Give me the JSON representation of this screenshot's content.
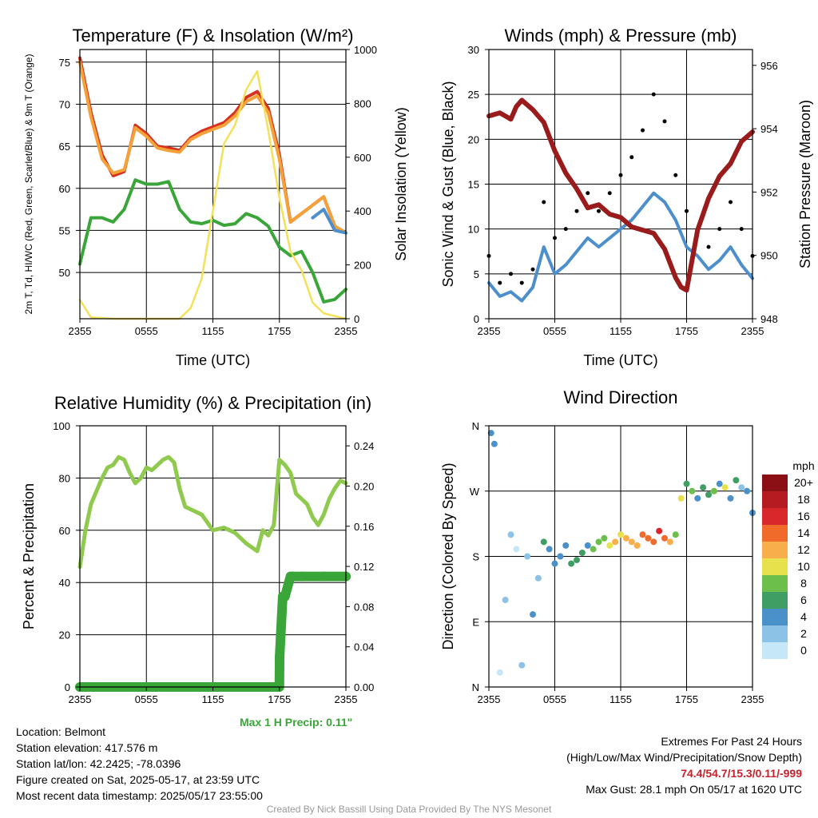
{
  "chart_data": [
    {
      "type": "line",
      "title": "Temperature (F) & Insolation (W/m²)",
      "xlabel": "Time (UTC)",
      "ylabel": "2m T, Td, HI/WC (Red, Green, Scarlet/Blue) & 9m T (Orange)",
      "y2label": "Solar Insolation (Yellow)",
      "x_ticks": [
        "2355",
        "0555",
        "1155",
        "1755",
        "2355"
      ],
      "ylim": [
        44.5,
        76.5
      ],
      "y_ticks": [
        50,
        55,
        60,
        65,
        70,
        75
      ],
      "y2lim": [
        0,
        1000
      ],
      "y2_ticks": [
        0,
        200,
        400,
        600,
        800,
        1000
      ],
      "grid": true,
      "series": [
        {
          "name": "2m T",
          "color": "#d7301f",
          "axis": "left",
          "x": [
            0,
            1,
            2,
            3,
            4,
            5,
            6,
            7,
            8,
            9,
            10,
            11,
            12,
            13,
            14,
            15,
            16,
            17,
            18,
            19,
            20,
            21,
            22,
            23,
            24
          ],
          "y": [
            75.5,
            69,
            64,
            61.5,
            62,
            67.5,
            66.5,
            65,
            64.8,
            64.5,
            66,
            66.8,
            67.3,
            67.8,
            69,
            70.8,
            71.5,
            69.5,
            64,
            56,
            57,
            58,
            59,
            55.5,
            54.7
          ]
        },
        {
          "name": "9m T",
          "color": "#f4a13a",
          "axis": "left",
          "x": [
            0,
            1,
            2,
            3,
            4,
            5,
            6,
            7,
            8,
            9,
            10,
            11,
            12,
            13,
            14,
            15,
            16,
            17,
            18,
            19,
            20,
            21,
            22,
            23,
            24
          ],
          "y": [
            75,
            68.5,
            63.5,
            61.8,
            62.2,
            67.2,
            66.2,
            64.8,
            64.5,
            64.3,
            65.8,
            66.5,
            67,
            67.5,
            68.6,
            70.3,
            71,
            69,
            63.5,
            56,
            57,
            58,
            59,
            55.5,
            54.7
          ]
        },
        {
          "name": "Td",
          "color": "#3aa63a",
          "axis": "left",
          "x": [
            0,
            1,
            2,
            3,
            4,
            5,
            6,
            7,
            8,
            9,
            10,
            11,
            12,
            13,
            14,
            15,
            16,
            17,
            18,
            19,
            20,
            21,
            22,
            23,
            24
          ],
          "y": [
            51,
            56.5,
            56.5,
            56,
            57.5,
            61,
            60.5,
            60.5,
            60.8,
            57.5,
            56,
            55.8,
            56.2,
            55.6,
            55.8,
            57,
            56.5,
            55.5,
            53,
            52,
            52.5,
            50,
            46.5,
            46.8,
            48
          ]
        },
        {
          "name": "HI/WC",
          "color": "#4d8fcc",
          "axis": "left",
          "x": [
            21,
            22,
            23,
            24
          ],
          "y": [
            56.5,
            57.5,
            55,
            54.7
          ]
        },
        {
          "name": "Solar Insolation",
          "color": "#f5e05a",
          "axis": "right",
          "x": [
            0,
            1,
            3,
            5,
            7,
            9,
            10,
            11,
            12,
            13,
            14,
            15,
            16,
            17,
            18,
            19,
            20,
            21,
            22,
            23,
            24
          ],
          "y": [
            70,
            5,
            0,
            0,
            0,
            0,
            40,
            150,
            400,
            650,
            720,
            850,
            920,
            700,
            450,
            250,
            180,
            60,
            20,
            10,
            0
          ]
        }
      ]
    },
    {
      "type": "line",
      "title": "Winds (mph) & Pressure (mb)",
      "xlabel": "Time (UTC)",
      "ylabel": "Sonic Wind & Gust (Blue, Black)",
      "y2label": "Station Pressure (Maroon)",
      "x_ticks": [
        "2355",
        "0555",
        "1155",
        "1755",
        "2355"
      ],
      "ylim": [
        0,
        30
      ],
      "y_ticks": [
        0,
        5,
        10,
        15,
        20,
        25,
        30
      ],
      "y2lim": [
        948,
        956.5
      ],
      "y2_ticks": [
        948,
        950,
        952,
        954,
        956
      ],
      "grid": true,
      "series": [
        {
          "name": "Sonic Wind",
          "color": "#4d8fcc",
          "axis": "left",
          "x": [
            0,
            1,
            2,
            3,
            4,
            5,
            6,
            7,
            8,
            9,
            10,
            11,
            12,
            13,
            14,
            15,
            16,
            17,
            18,
            19,
            20,
            21,
            22,
            23,
            24
          ],
          "y": [
            4,
            2.5,
            3,
            2,
            3.5,
            8,
            5,
            6,
            7.5,
            9,
            8,
            9,
            10,
            11,
            12.5,
            14,
            13,
            11,
            8,
            7,
            5.5,
            6.5,
            8,
            6,
            4.5
          ]
        },
        {
          "name": "Gust",
          "color": "#000000",
          "axis": "left",
          "x": [
            0,
            1,
            2,
            3,
            4,
            5,
            6,
            7,
            8,
            9,
            10,
            11,
            12,
            13,
            14,
            15,
            16,
            17,
            18,
            19,
            20,
            21,
            22,
            23,
            24
          ],
          "y": [
            7,
            4,
            5,
            4,
            5.5,
            13,
            9,
            10,
            12,
            14,
            12,
            14,
            16,
            18,
            21,
            25,
            22,
            16,
            12,
            10,
            8,
            10,
            13,
            10,
            7
          ]
        },
        {
          "name": "Station Pressure",
          "color": "#991b1b",
          "axis": "right",
          "x": [
            0,
            1,
            2,
            2.5,
            3,
            4,
            5,
            6,
            7,
            8,
            9,
            10,
            11,
            12,
            13,
            14,
            15,
            16,
            17,
            17.5,
            18,
            19,
            20,
            21,
            22,
            23,
            24
          ],
          "y": [
            954.4,
            954.5,
            954.3,
            954.7,
            954.9,
            954.6,
            954.2,
            953.3,
            952.6,
            952.1,
            951.5,
            951.6,
            951.3,
            951.2,
            950.9,
            950.8,
            950.7,
            950.2,
            949.3,
            949.0,
            948.9,
            950.8,
            951.8,
            952.5,
            952.9,
            953.6,
            953.9
          ]
        }
      ]
    },
    {
      "type": "line",
      "title": "Relative Humidity (%) & Precipitation (in)",
      "xlabel": "",
      "ylabel": "Percent & Precipitation",
      "x_ticks": [
        "2355",
        "0555",
        "1155",
        "1755",
        "2355"
      ],
      "ylim": [
        0,
        100
      ],
      "y_ticks": [
        0,
        20,
        40,
        60,
        80,
        100
      ],
      "y2lim": [
        0,
        0.26
      ],
      "y2_ticks": [
        "0.00",
        "0.04",
        "0.08",
        "0.12",
        "0.16",
        "0.20",
        "0.24"
      ],
      "grid": true,
      "series": [
        {
          "name": "Relative Humidity",
          "color": "#8fc94d",
          "axis": "left",
          "x": [
            0,
            0.5,
            1,
            1.5,
            2,
            2.5,
            3,
            3.5,
            4,
            4.5,
            5,
            5.5,
            6,
            6.5,
            7,
            7.5,
            8,
            8.5,
            9,
            9.5,
            10,
            11,
            12,
            13,
            14,
            15,
            16,
            16.5,
            17,
            17.5,
            18,
            18.5,
            19,
            19.5,
            20,
            20.5,
            21,
            21.5,
            22,
            22.5,
            23,
            23.5,
            24
          ],
          "y": [
            46,
            60,
            70,
            75,
            80,
            84,
            85,
            88,
            87,
            82,
            78,
            80,
            84,
            83,
            85,
            87,
            88,
            86,
            76,
            69,
            68,
            66,
            60,
            61,
            59,
            55,
            52,
            60,
            58,
            62,
            87,
            85,
            82,
            74,
            72,
            70,
            65,
            62,
            66,
            72,
            76,
            79,
            78
          ]
        },
        {
          "name": "Precipitation",
          "color": "#3aa63a",
          "axis": "right",
          "x": [
            0,
            18,
            18.02,
            18.3,
            18.5,
            19,
            19.2,
            20,
            22,
            24
          ],
          "y": [
            0,
            0,
            0.03,
            0.09,
            0.09,
            0.11,
            0.11,
            0.11,
            0.11,
            0.11
          ]
        }
      ],
      "annotation": "Max 1 H Precip: 0.11\""
    },
    {
      "type": "scatter",
      "title": "Wind Direction",
      "xlabel": "",
      "ylabel": "Direction (Colored By Speed)",
      "x_ticks": [
        "2355",
        "0555",
        "1155",
        "1755",
        "2355"
      ],
      "y_ticks": [
        "N",
        "E",
        "S",
        "W",
        "N"
      ],
      "ylim": [
        0,
        360
      ],
      "legend_title": "mph",
      "legend_labels": [
        "0",
        "2",
        "4",
        "6",
        "8",
        "10",
        "12",
        "14",
        "16",
        "18",
        "20+"
      ],
      "legend_colors": [
        "#c6e7f7",
        "#8cc2e6",
        "#4a90c9",
        "#3f9e64",
        "#6cbf4a",
        "#e7e14e",
        "#f8ae4a",
        "#f06a2a",
        "#d9282b",
        "#b51c22",
        "#8a1016"
      ],
      "legend_placement": "right",
      "grid": true,
      "series": [
        {
          "name": "",
          "x": [
            0.2,
            0.5,
            1,
            1.5,
            2,
            2.5,
            3,
            3.5,
            4,
            4.5,
            5,
            5.5,
            6,
            6.5,
            7,
            7.5,
            8,
            8.5,
            9,
            9.5,
            10,
            10.5,
            11,
            11.5,
            12,
            12.5,
            13,
            13.5,
            14,
            14.5,
            15,
            15.5,
            16,
            16.5,
            17,
            17.5,
            18,
            18.5,
            19,
            19.5,
            20,
            20.5,
            21,
            21.5,
            22,
            22.5,
            23,
            23.5,
            24
          ],
          "y": [
            350,
            335,
            20,
            120,
            210,
            190,
            30,
            180,
            100,
            150,
            200,
            190,
            170,
            180,
            195,
            170,
            175,
            185,
            195,
            190,
            200,
            205,
            195,
            200,
            210,
            205,
            200,
            195,
            210,
            205,
            200,
            215,
            205,
            200,
            210,
            260,
            280,
            270,
            260,
            275,
            265,
            270,
            280,
            275,
            260,
            285,
            275,
            270,
            240
          ],
          "speeds": [
            4,
            4,
            1,
            2,
            3,
            1,
            2,
            3,
            4,
            2,
            6,
            5,
            4,
            5,
            4,
            6,
            6,
            7,
            4,
            8,
            8,
            9,
            10,
            12,
            11,
            12,
            13,
            12,
            14,
            15,
            14,
            16,
            15,
            12,
            9,
            10,
            6,
            8,
            4,
            7,
            6,
            9,
            4,
            10,
            5,
            6,
            3,
            4,
            4
          ]
        }
      ]
    }
  ],
  "info": {
    "location": "Location: Belmont",
    "elevation": "Station elevation: 417.576 m",
    "latlon": "Station lat/lon: 42.2425; -78.0396",
    "created": "Figure created on Sat, 2025-05-17, at 23:59 UTC",
    "recent": "Most recent data timestamp: 2025/05/17 23:55:00"
  },
  "extremes": {
    "title": "Extremes For Past 24 Hours",
    "subtitle": "(High/Low/Max Wind/Precipitation/Snow Depth)",
    "values": "74.4/54.7/15.3/0.11/-999",
    "gust": "Max Gust: 28.1 mph On 05/17 at 1620 UTC"
  },
  "credit": "Created By Nick Bassill Using Data Provided By The NYS Mesonet"
}
